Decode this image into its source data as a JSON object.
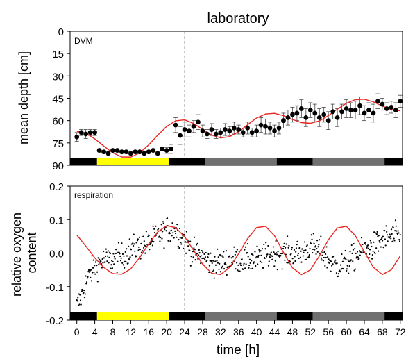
{
  "chart_data": [
    {
      "type": "line",
      "title": "laboratory",
      "panel_label": "DVM",
      "ylabel": "mean depth [cm]",
      "xlabel": "",
      "xlim": [
        -1.5,
        72.5
      ],
      "ylim": [
        90,
        0
      ],
      "y_inverted": true,
      "y_ticks": [
        0,
        15,
        30,
        45,
        60,
        75,
        90
      ],
      "x_ticks": [
        0,
        4,
        8,
        12,
        16,
        20,
        24,
        28,
        32,
        36,
        40,
        44,
        48,
        52,
        56,
        60,
        64,
        68,
        72
      ],
      "vline_x": 24,
      "light_bar": [
        {
          "from": -1.5,
          "to": 4.5,
          "state": "dark"
        },
        {
          "from": 4.5,
          "to": 20.5,
          "state": "light"
        },
        {
          "from": 20.5,
          "to": 28.5,
          "state": "dark"
        },
        {
          "from": 28.5,
          "to": 44.5,
          "state": "dim"
        },
        {
          "from": 44.5,
          "to": 52.5,
          "state": "dark"
        },
        {
          "from": 52.5,
          "to": 68.5,
          "state": "dim"
        },
        {
          "from": 68.5,
          "to": 72.5,
          "state": "dark"
        }
      ],
      "series": [
        {
          "kind": "points_with_error",
          "x": [
            0,
            1,
            2,
            3,
            4,
            5,
            6,
            7,
            8,
            9,
            10,
            11,
            12,
            13,
            14,
            15,
            16,
            17,
            18,
            19,
            20,
            21,
            22,
            23,
            24,
            25,
            26,
            27,
            28,
            29,
            30,
            31,
            32,
            33,
            34,
            35,
            36,
            37,
            38,
            39,
            40,
            41,
            42,
            43,
            44,
            45,
            46,
            47,
            48,
            49,
            50,
            51,
            52,
            53,
            54,
            55,
            56,
            57,
            58,
            59,
            60,
            61,
            62,
            63,
            64,
            65,
            66,
            67,
            68,
            69,
            70,
            71,
            72
          ],
          "y": [
            71,
            68,
            69,
            68,
            68,
            80,
            81,
            82,
            80,
            80,
            81,
            81,
            82,
            81,
            81,
            82,
            81,
            80,
            82,
            79,
            80,
            79,
            63,
            70,
            66,
            67,
            64,
            61,
            67,
            69,
            66,
            69,
            68,
            66,
            67,
            65,
            66,
            68,
            65,
            68,
            67,
            63,
            64,
            65,
            67,
            65,
            60,
            58,
            56,
            55,
            52,
            58,
            53,
            55,
            58,
            56,
            60,
            54,
            58,
            54,
            52,
            53,
            53,
            50,
            55,
            53,
            55,
            47,
            49,
            52,
            51,
            53,
            47
          ],
          "err": [
            3,
            2,
            3,
            2,
            2,
            1,
            1,
            1,
            1,
            1,
            1,
            1,
            1,
            1,
            1,
            1,
            1,
            1,
            1,
            1,
            2,
            3,
            5,
            6,
            5,
            4,
            4,
            5,
            4,
            3,
            4,
            3,
            3,
            4,
            3,
            4,
            3,
            3,
            4,
            3,
            4,
            5,
            5,
            4,
            4,
            4,
            5,
            5,
            5,
            5,
            6,
            6,
            5,
            6,
            6,
            5,
            6,
            5,
            6,
            5,
            6,
            5,
            6,
            6,
            5,
            5,
            6,
            5,
            4,
            4,
            4,
            5,
            4
          ],
          "color": "#000000"
        },
        {
          "kind": "fit_curve",
          "color": "#e8251f",
          "x": [
            0,
            2,
            4,
            6,
            8,
            10,
            12,
            14,
            16,
            18,
            20,
            22,
            24,
            26,
            28,
            30,
            32,
            34,
            36,
            38,
            40,
            42,
            44,
            46,
            48,
            50,
            52,
            54,
            56,
            58,
            60,
            62,
            64,
            66,
            68,
            70,
            72
          ],
          "y": [
            67.1,
            68.5,
            72.3,
            77.1,
            81.6,
            84.4,
            84.5,
            81.7,
            76.3,
            69.8,
            63.9,
            60.1,
            59.5,
            61.9,
            65.9,
            69.7,
            71.6,
            70.8,
            67.5,
            62.8,
            58.3,
            55.6,
            55.1,
            56.7,
            59.2,
            61.3,
            61.8,
            60.2,
            56.7,
            52.3,
            48.4,
            45.9,
            45.6,
            47.4,
            50.2,
            52.7,
            53.4
          ]
        }
      ]
    },
    {
      "type": "scatter",
      "title": "",
      "panel_label": "respiration",
      "ylabel": "relative oxygen content",
      "xlabel": "time [h]",
      "xlim": [
        -1.5,
        72.5
      ],
      "ylim": [
        -0.2,
        0.2
      ],
      "y_ticks": [
        -0.2,
        -0.1,
        0.0,
        0.1,
        0.2
      ],
      "y_tick_labels": [
        "-0.2",
        "-0.1",
        "0.0",
        "0.1",
        "0.2"
      ],
      "x_ticks": [
        0,
        4,
        8,
        12,
        16,
        20,
        24,
        28,
        32,
        36,
        40,
        44,
        48,
        52,
        56,
        60,
        64,
        68,
        72
      ],
      "vline_x": 24,
      "light_bar": [
        {
          "from": -1.5,
          "to": 4.5,
          "state": "dark"
        },
        {
          "from": 4.5,
          "to": 20.5,
          "state": "light"
        },
        {
          "from": 20.5,
          "to": 28.5,
          "state": "dark"
        },
        {
          "from": 28.5,
          "to": 44.5,
          "state": "dim"
        },
        {
          "from": 44.5,
          "to": 52.5,
          "state": "dark"
        },
        {
          "from": 52.5,
          "to": 68.5,
          "state": "dim"
        },
        {
          "from": 68.5,
          "to": 72.5,
          "state": "dark"
        }
      ],
      "series": [
        {
          "kind": "fit_curve",
          "color": "#e8251f",
          "x": [
            0,
            2,
            4,
            6,
            8,
            10,
            12,
            14,
            16,
            18,
            20,
            22,
            24,
            26,
            28,
            30,
            32,
            34,
            36,
            38,
            40,
            42,
            44,
            46,
            48,
            50,
            52,
            54,
            56,
            58,
            60,
            62,
            64,
            66,
            68,
            70,
            72
          ],
          "y": [
            0.054,
            0.021,
            -0.014,
            -0.043,
            -0.061,
            -0.063,
            -0.047,
            -0.013,
            0.028,
            0.063,
            0.082,
            0.076,
            0.049,
            0.008,
            -0.033,
            -0.06,
            -0.064,
            -0.043,
            -0.002,
            0.043,
            0.076,
            0.08,
            0.052,
            0.002,
            -0.044,
            -0.064,
            -0.05,
            -0.008,
            0.04,
            0.075,
            0.08,
            0.052,
            0.004,
            -0.042,
            -0.064,
            -0.05,
            -0.008
          ]
        },
        {
          "kind": "raw_scatter",
          "color": "#000000",
          "count": 620,
          "mean_anchor_x": [
            0,
            1,
            2,
            3,
            4,
            6,
            8,
            10,
            12,
            14,
            16,
            18,
            20,
            22,
            24,
            26,
            28,
            30,
            32,
            34,
            36,
            38,
            40,
            42,
            44,
            46,
            48,
            50,
            52,
            54,
            56,
            58,
            60,
            62,
            64,
            66,
            68,
            70,
            72
          ],
          "mean_anchor_y": [
            -0.16,
            -0.13,
            -0.09,
            -0.06,
            -0.04,
            -0.02,
            -0.02,
            -0.01,
            0.01,
            0.02,
            0.03,
            0.05,
            0.07,
            0.07,
            0.04,
            0.0,
            -0.01,
            -0.03,
            -0.03,
            -0.02,
            -0.02,
            -0.02,
            -0.02,
            -0.01,
            0.0,
            0.0,
            0.0,
            0.0,
            0.02,
            0.01,
            -0.02,
            -0.04,
            -0.03,
            -0.01,
            0.01,
            0.02,
            0.04,
            0.05,
            0.05
          ],
          "spread": 0.028
        }
      ]
    }
  ]
}
